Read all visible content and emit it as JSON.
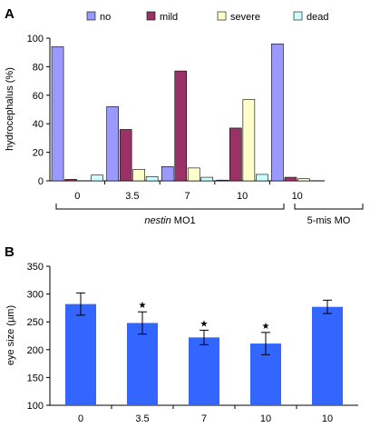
{
  "chart_data": [
    {
      "panel_label": "A",
      "type": "bar",
      "ylabel": "hydrocephalus (%)",
      "ylim": [
        0,
        100
      ],
      "yticks": [
        0,
        20,
        40,
        60,
        80,
        100
      ],
      "categories": [
        "0",
        "3.5",
        "7",
        "10",
        "10"
      ],
      "series": [
        {
          "name": "no",
          "color": "#9999ff",
          "values": [
            94,
            52,
            10,
            0.5,
            96
          ]
        },
        {
          "name": "mild",
          "color": "#993366",
          "values": [
            1,
            36,
            77,
            37,
            2.5
          ]
        },
        {
          "name": "severe",
          "color": "#ffffcc",
          "values": [
            0,
            8,
            9,
            57,
            1.5
          ]
        },
        {
          "name": "dead",
          "color": "#ccffff",
          "values": [
            4,
            3,
            2.5,
            4.5,
            0
          ]
        }
      ],
      "legend_position": "top",
      "groups": [
        {
          "label_italic": "nestin",
          "label_rest": " MO1",
          "categories": [
            0,
            1,
            2,
            3
          ]
        },
        {
          "label_italic": "",
          "label_rest": "5-mis MO",
          "categories": [
            4
          ]
        }
      ]
    },
    {
      "panel_label": "B",
      "type": "bar",
      "ylabel": "eye size (µm)",
      "ylim": [
        100,
        350
      ],
      "yticks": [
        100,
        150,
        200,
        250,
        300,
        350
      ],
      "categories": [
        "0",
        "3.5",
        "7",
        "10",
        "10"
      ],
      "values": [
        282,
        248,
        222,
        211,
        277
      ],
      "errors": [
        20,
        20,
        13,
        20,
        12
      ],
      "significant": [
        false,
        true,
        true,
        true,
        false
      ],
      "color": "#3366ff",
      "star": "★"
    }
  ]
}
